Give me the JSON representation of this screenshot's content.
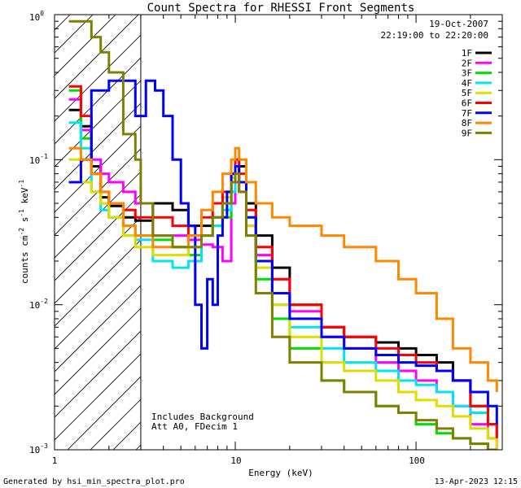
{
  "chart_data": {
    "type": "line",
    "title": "Count Spectra for RHESSI Front Segments",
    "xlabel": "Energy (keV)",
    "ylabel": "counts cm-2 s-1 keV-1",
    "xscale": "log",
    "yscale": "log",
    "xlim": [
      1,
      300
    ],
    "ylim": [
      0.001,
      1.0
    ],
    "x_tick_labels": [
      "1",
      "10",
      "100"
    ],
    "y_tick_labels": [
      "10-3",
      "10-2",
      "10-1",
      "100"
    ],
    "date": "19-Oct-2007",
    "time_range": "22:19:00 to 22:20:00",
    "notes": [
      "Includes Background",
      "Att A0, FDecim 1"
    ],
    "hatched_region_below_keV": 3,
    "legend_position": "top-right",
    "series": [
      {
        "name": "1F",
        "color": "#000000",
        "x": [
          1.2,
          1.4,
          1.6,
          1.8,
          2.0,
          2.4,
          2.8,
          3.5,
          4.5,
          5.5,
          6.5,
          7.5,
          8.5,
          9.5,
          10.0,
          10.5,
          11.5,
          13,
          16,
          20,
          30,
          40,
          60,
          80,
          100,
          130,
          160,
          200,
          250,
          280
        ],
        "values": [
          0.22,
          0.17,
          0.09,
          0.055,
          0.048,
          0.04,
          0.038,
          0.05,
          0.045,
          0.035,
          0.035,
          0.04,
          0.05,
          0.08,
          0.1,
          0.09,
          0.05,
          0.03,
          0.018,
          0.01,
          0.007,
          0.006,
          0.0055,
          0.005,
          0.0045,
          0.004,
          0.003,
          0.002,
          0.0015,
          0.0012
        ]
      },
      {
        "name": "2F",
        "color": "#ff00ff",
        "x": [
          1.2,
          1.4,
          1.6,
          1.8,
          2.0,
          2.4,
          2.8,
          3.5,
          4.5,
          5.5,
          6.5,
          7.5,
          8.5,
          9.5,
          10.0,
          10.5,
          11.5,
          13,
          16,
          20,
          30,
          40,
          60,
          80,
          100,
          130,
          160,
          200,
          250,
          280
        ],
        "values": [
          0.26,
          0.16,
          0.1,
          0.08,
          0.07,
          0.06,
          0.05,
          0.03,
          0.03,
          0.028,
          0.026,
          0.025,
          0.02,
          0.05,
          0.07,
          0.06,
          0.035,
          0.022,
          0.015,
          0.009,
          0.006,
          0.005,
          0.004,
          0.0035,
          0.003,
          0.0025,
          0.002,
          0.0015,
          0.0012,
          0.001
        ]
      },
      {
        "name": "3F",
        "color": "#00dd00",
        "x": [
          1.2,
          1.4,
          1.6,
          1.8,
          2.0,
          2.4,
          2.8,
          3.5,
          4.5,
          5.5,
          6.5,
          7.5,
          8.5,
          9.5,
          10.0,
          10.5,
          11.5,
          13,
          16,
          20,
          30,
          40,
          60,
          80,
          100,
          130,
          160,
          200,
          250,
          280
        ],
        "values": [
          0.3,
          0.14,
          0.08,
          0.05,
          0.04,
          0.035,
          0.03,
          0.028,
          0.025,
          0.022,
          0.03,
          0.035,
          0.04,
          0.07,
          0.09,
          0.07,
          0.03,
          0.015,
          0.008,
          0.005,
          0.003,
          0.0025,
          0.002,
          0.0018,
          0.0015,
          0.0013,
          0.0012,
          0.0011,
          0.001,
          0.001
        ]
      },
      {
        "name": "4F",
        "color": "#00e5ee",
        "x": [
          1.2,
          1.4,
          1.6,
          1.8,
          2.0,
          2.4,
          2.8,
          3.5,
          4.5,
          5.5,
          6.5,
          7.5,
          8.5,
          9.5,
          10.0,
          10.5,
          11.5,
          13,
          16,
          20,
          30,
          40,
          60,
          80,
          100,
          130,
          160,
          200,
          250,
          280
        ],
        "values": [
          0.18,
          0.12,
          0.06,
          0.045,
          0.04,
          0.03,
          0.028,
          0.02,
          0.018,
          0.02,
          0.03,
          0.035,
          0.045,
          0.06,
          0.08,
          0.07,
          0.04,
          0.02,
          0.01,
          0.007,
          0.005,
          0.004,
          0.0035,
          0.003,
          0.0028,
          0.0025,
          0.002,
          0.0018,
          0.0015,
          0.0012
        ]
      },
      {
        "name": "5F",
        "color": "#dddd00",
        "x": [
          1.2,
          1.4,
          1.6,
          1.8,
          2.0,
          2.4,
          2.8,
          3.5,
          4.5,
          5.5,
          6.5,
          7.5,
          8.5,
          9.5,
          10.0,
          10.5,
          11.5,
          13,
          16,
          20,
          30,
          40,
          60,
          80,
          100,
          130,
          160,
          200,
          250,
          280
        ],
        "values": [
          0.1,
          0.07,
          0.06,
          0.05,
          0.04,
          0.03,
          0.025,
          0.022,
          0.022,
          0.025,
          0.03,
          0.04,
          0.055,
          0.075,
          0.09,
          0.07,
          0.035,
          0.018,
          0.01,
          0.006,
          0.004,
          0.0035,
          0.003,
          0.0025,
          0.0022,
          0.002,
          0.0017,
          0.0014,
          0.0012,
          0.001
        ]
      },
      {
        "name": "6F",
        "color": "#ff0000",
        "x": [
          1.2,
          1.4,
          1.6,
          1.8,
          2.0,
          2.4,
          2.8,
          3.5,
          4.5,
          5.5,
          6.5,
          7.5,
          8.5,
          9.5,
          10.0,
          10.5,
          11.5,
          13,
          16,
          20,
          30,
          40,
          60,
          80,
          100,
          130,
          160,
          200,
          250,
          280
        ],
        "values": [
          0.32,
          0.2,
          0.08,
          0.06,
          0.05,
          0.045,
          0.04,
          0.04,
          0.035,
          0.03,
          0.04,
          0.05,
          0.06,
          0.08,
          0.1,
          0.08,
          0.045,
          0.025,
          0.015,
          0.01,
          0.007,
          0.006,
          0.005,
          0.0045,
          0.004,
          0.0035,
          0.003,
          0.002,
          0.0015,
          0.0012
        ]
      },
      {
        "name": "7F",
        "color": "#0000ff",
        "x": [
          1.2,
          1.4,
          1.6,
          2.0,
          2.4,
          2.8,
          3.2,
          3.6,
          4.0,
          4.5,
          5.0,
          5.5,
          6.0,
          6.5,
          7.0,
          7.5,
          8.0,
          8.5,
          9.0,
          9.5,
          10.0,
          10.5,
          11.5,
          13,
          16,
          20,
          30,
          40,
          60,
          80,
          100,
          130,
          160,
          200,
          250,
          280
        ],
        "values": [
          0.07,
          0.1,
          0.3,
          0.35,
          0.35,
          0.2,
          0.35,
          0.3,
          0.2,
          0.1,
          0.05,
          0.035,
          0.01,
          0.005,
          0.015,
          0.01,
          0.03,
          0.04,
          0.06,
          0.08,
          0.09,
          0.07,
          0.04,
          0.02,
          0.012,
          0.008,
          0.006,
          0.005,
          0.0045,
          0.004,
          0.0038,
          0.0035,
          0.003,
          0.0025,
          0.002,
          0.0015
        ]
      },
      {
        "name": "8F",
        "color": "#ff8800",
        "x": [
          1.2,
          1.4,
          1.6,
          1.8,
          2.0,
          2.4,
          2.8,
          3.5,
          4.5,
          5.5,
          6.5,
          7.5,
          8.5,
          9.5,
          10.0,
          10.5,
          11.5,
          13,
          16,
          20,
          30,
          40,
          60,
          80,
          100,
          130,
          160,
          200,
          250,
          280
        ],
        "values": [
          0.12,
          0.1,
          0.08,
          0.06,
          0.05,
          0.035,
          0.03,
          0.025,
          0.025,
          0.03,
          0.045,
          0.06,
          0.08,
          0.1,
          0.12,
          0.1,
          0.07,
          0.05,
          0.04,
          0.035,
          0.03,
          0.025,
          0.02,
          0.015,
          0.012,
          0.008,
          0.005,
          0.004,
          0.003,
          0.0025
        ]
      },
      {
        "name": "9F",
        "color": "#808000",
        "x": [
          1.2,
          1.4,
          1.6,
          1.8,
          2.0,
          2.4,
          2.8,
          3.0,
          3.5,
          4.5,
          5.5,
          6.5,
          7.5,
          8.5,
          9.5,
          10.0,
          10.5,
          11.5,
          13,
          16,
          20,
          30,
          40,
          60,
          80,
          100,
          130,
          160,
          200,
          250,
          280
        ],
        "values": [
          0.9,
          0.9,
          0.7,
          0.55,
          0.4,
          0.15,
          0.1,
          0.05,
          0.03,
          0.025,
          0.025,
          0.03,
          0.04,
          0.05,
          0.07,
          0.08,
          0.06,
          0.03,
          0.012,
          0.006,
          0.004,
          0.003,
          0.0025,
          0.002,
          0.0018,
          0.0016,
          0.0014,
          0.0012,
          0.0011,
          0.001,
          0.001
        ]
      }
    ]
  },
  "footer": {
    "generated_by": "Generated by hsi_min_spectra_plot.pro",
    "timestamp": "13-Apr-2023 12:15"
  }
}
